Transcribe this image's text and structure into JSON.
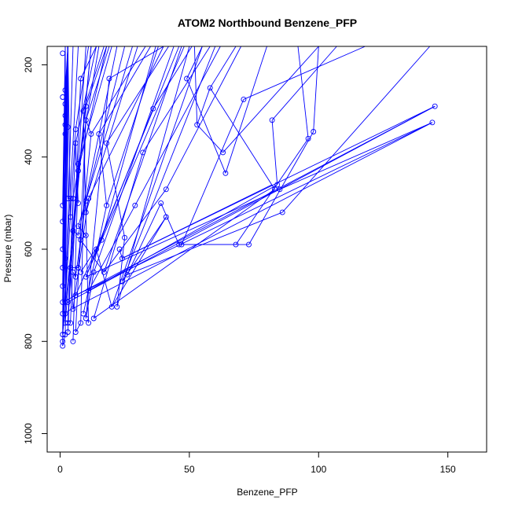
{
  "chart_data": {
    "type": "line",
    "title": "ATOM2 Northbound Benzene_PFP",
    "xlabel": "Benzene_PFP",
    "ylabel": "Pressure (mbar)",
    "xlim": [
      -5,
      165
    ],
    "ylim": [
      1040,
      160
    ],
    "y_reversed": true,
    "xticks": [
      0,
      50,
      100,
      150
    ],
    "yticks": [
      200,
      400,
      600,
      800,
      1000
    ],
    "grid": false,
    "series_color": "#0000ff",
    "points": [
      [
        1,
        810
      ],
      [
        1,
        800
      ],
      [
        1,
        785
      ],
      [
        1,
        740
      ],
      [
        1,
        715
      ],
      [
        1,
        680
      ],
      [
        1,
        640
      ],
      [
        1,
        600
      ],
      [
        1,
        540
      ],
      [
        1,
        505
      ],
      [
        1,
        270
      ],
      [
        1,
        175
      ],
      [
        2,
        785
      ],
      [
        2,
        760
      ],
      [
        2,
        740
      ],
      [
        2,
        715
      ],
      [
        2,
        620
      ],
      [
        2,
        350
      ],
      [
        2,
        330
      ],
      [
        2,
        310
      ],
      [
        2,
        285
      ],
      [
        2,
        255
      ],
      [
        3,
        780
      ],
      [
        3,
        760
      ],
      [
        3,
        715
      ],
      [
        3,
        490
      ],
      [
        3,
        335
      ],
      [
        4,
        760
      ],
      [
        4,
        640
      ],
      [
        4,
        530
      ],
      [
        4,
        490
      ],
      [
        5,
        800
      ],
      [
        5,
        730
      ],
      [
        5,
        650
      ],
      [
        5,
        560
      ],
      [
        5,
        490
      ],
      [
        6,
        780
      ],
      [
        6,
        700
      ],
      [
        6,
        660
      ],
      [
        6,
        370
      ],
      [
        6,
        340
      ],
      [
        7,
        640
      ],
      [
        7,
        570
      ],
      [
        7,
        550
      ],
      [
        7,
        500
      ],
      [
        7,
        430
      ],
      [
        7,
        415
      ],
      [
        8,
        760
      ],
      [
        8,
        650
      ],
      [
        8,
        580
      ],
      [
        8,
        230
      ],
      [
        9,
        740
      ],
      [
        9,
        300
      ],
      [
        10,
        750
      ],
      [
        10,
        660
      ],
      [
        10,
        570
      ],
      [
        10,
        520
      ],
      [
        10,
        495
      ],
      [
        10,
        320
      ],
      [
        10,
        290
      ],
      [
        11,
        760
      ],
      [
        11,
        690
      ],
      [
        11,
        490
      ],
      [
        12,
        350
      ],
      [
        13,
        750
      ],
      [
        13,
        650
      ],
      [
        14,
        600
      ],
      [
        15,
        350
      ],
      [
        16,
        580
      ],
      [
        17,
        650
      ],
      [
        18,
        505
      ],
      [
        18,
        370
      ],
      [
        19,
        230
      ],
      [
        20,
        725
      ],
      [
        22,
        725
      ],
      [
        23,
        600
      ],
      [
        24,
        620
      ],
      [
        24,
        670
      ],
      [
        25,
        575
      ],
      [
        26,
        655
      ],
      [
        29,
        505
      ],
      [
        32,
        390
      ],
      [
        36,
        295
      ],
      [
        39,
        500
      ],
      [
        41,
        530
      ],
      [
        41,
        470
      ],
      [
        46,
        590
      ],
      [
        47,
        590
      ],
      [
        49,
        230
      ],
      [
        53,
        330
      ],
      [
        58,
        250
      ],
      [
        63,
        390
      ],
      [
        64,
        435
      ],
      [
        68,
        590
      ],
      [
        71,
        275
      ],
      [
        73,
        590
      ],
      [
        82,
        320
      ],
      [
        83,
        470
      ],
      [
        84,
        460
      ],
      [
        85,
        470
      ],
      [
        86,
        520
      ],
      [
        96,
        360
      ],
      [
        98,
        345
      ],
      [
        144,
        325
      ],
      [
        145,
        290
      ]
    ],
    "segments": [
      [
        1,
        810,
        3,
        160
      ],
      [
        1,
        785,
        2,
        160
      ],
      [
        1,
        740,
        3,
        160
      ],
      [
        1,
        715,
        2,
        160
      ],
      [
        2,
        785,
        3,
        160
      ],
      [
        2,
        760,
        2,
        160
      ],
      [
        1,
        680,
        2,
        160
      ],
      [
        1,
        640,
        3,
        160
      ],
      [
        2,
        620,
        3,
        160
      ],
      [
        1,
        600,
        2,
        160
      ],
      [
        1,
        540,
        3,
        160
      ],
      [
        1,
        505,
        2,
        160
      ],
      [
        2,
        350,
        3,
        160
      ],
      [
        2,
        330,
        3,
        160
      ],
      [
        2,
        310,
        3,
        160
      ],
      [
        2,
        285,
        3,
        160
      ],
      [
        2,
        255,
        3,
        160
      ],
      [
        3,
        490,
        3,
        160
      ],
      [
        3,
        335,
        3,
        160
      ],
      [
        4,
        530,
        3,
        160
      ],
      [
        1,
        785,
        7,
        160
      ],
      [
        2,
        740,
        5,
        160
      ],
      [
        3,
        760,
        10,
        160
      ],
      [
        4,
        640,
        12,
        160
      ],
      [
        5,
        560,
        12,
        160
      ],
      [
        5,
        490,
        15,
        160
      ],
      [
        6,
        370,
        14,
        160
      ],
      [
        6,
        340,
        11,
        160
      ],
      [
        7,
        430,
        18,
        160
      ],
      [
        7,
        415,
        20,
        160
      ],
      [
        8,
        230,
        14,
        160
      ],
      [
        9,
        300,
        17,
        160
      ],
      [
        10,
        320,
        19,
        160
      ],
      [
        10,
        290,
        18,
        160
      ],
      [
        7,
        570,
        22,
        160
      ],
      [
        10,
        495,
        25,
        160
      ],
      [
        10,
        520,
        30,
        160
      ],
      [
        11,
        490,
        40,
        160
      ],
      [
        12,
        350,
        33,
        160
      ],
      [
        15,
        350,
        35,
        160
      ],
      [
        18,
        370,
        42,
        160
      ],
      [
        16,
        580,
        37,
        160
      ],
      [
        18,
        505,
        38,
        160
      ],
      [
        19,
        230,
        40,
        160
      ],
      [
        7,
        550,
        28,
        160
      ],
      [
        14,
        600,
        46,
        160
      ],
      [
        17,
        650,
        47,
        160
      ],
      [
        13,
        650,
        44,
        160
      ],
      [
        10,
        660,
        48,
        160
      ],
      [
        20,
        725,
        55,
        160
      ],
      [
        22,
        725,
        50,
        160
      ],
      [
        24,
        670,
        60,
        160
      ],
      [
        29,
        505,
        62,
        160
      ],
      [
        32,
        390,
        58,
        160
      ],
      [
        36,
        295,
        51,
        160
      ],
      [
        41,
        470,
        70,
        160
      ],
      [
        49,
        230,
        55,
        160
      ],
      [
        53,
        330,
        52,
        160
      ],
      [
        58,
        250,
        68,
        160
      ],
      [
        64,
        435,
        80,
        160
      ],
      [
        63,
        390,
        100,
        160
      ],
      [
        71,
        275,
        118,
        160
      ],
      [
        96,
        360,
        92,
        160
      ],
      [
        98,
        345,
        100,
        160
      ],
      [
        82,
        320,
        107,
        160
      ],
      [
        86,
        520,
        143,
        160
      ],
      [
        1,
        740,
        144,
        325
      ],
      [
        1,
        715,
        145,
        290
      ],
      [
        3,
        715,
        145,
        290
      ],
      [
        6,
        700,
        144,
        325
      ],
      [
        10,
        660,
        85,
        470
      ],
      [
        11,
        690,
        84,
        460
      ],
      [
        13,
        750,
        83,
        470
      ],
      [
        26,
        655,
        86,
        520
      ],
      [
        24,
        620,
        82,
        460
      ],
      [
        47,
        590,
        68,
        590
      ],
      [
        46,
        590,
        73,
        590
      ],
      [
        73,
        590,
        98,
        345
      ],
      [
        68,
        590,
        96,
        360
      ],
      [
        39,
        500,
        46,
        590
      ],
      [
        41,
        530,
        20,
        725
      ],
      [
        22,
        725,
        25,
        575
      ],
      [
        24,
        620,
        23,
        600
      ],
      [
        20,
        725,
        14,
        600
      ],
      [
        10,
        750,
        19,
        230
      ],
      [
        11,
        760,
        9,
        300
      ],
      [
        8,
        760,
        10,
        290
      ],
      [
        5,
        800,
        7,
        430
      ],
      [
        6,
        780,
        10,
        320
      ],
      [
        4,
        760,
        8,
        230
      ],
      [
        2,
        760,
        7,
        415
      ],
      [
        3,
        780,
        6,
        370
      ],
      [
        2,
        715,
        6,
        340
      ],
      [
        1,
        800,
        3,
        335
      ],
      [
        3,
        760,
        5,
        490
      ],
      [
        4,
        490,
        3,
        490
      ],
      [
        5,
        730,
        11,
        490
      ],
      [
        6,
        660,
        10,
        495
      ],
      [
        7,
        640,
        12,
        350
      ],
      [
        9,
        740,
        18,
        505
      ],
      [
        8,
        650,
        16,
        580
      ],
      [
        10,
        570,
        7,
        550
      ],
      [
        10,
        750,
        13,
        650
      ],
      [
        8,
        580,
        17,
        650
      ],
      [
        6,
        700,
        14,
        600
      ],
      [
        11,
        690,
        29,
        505
      ],
      [
        13,
        750,
        32,
        390
      ],
      [
        10,
        660,
        36,
        295
      ],
      [
        17,
        650,
        41,
        470
      ],
      [
        18,
        505,
        15,
        350
      ],
      [
        24,
        670,
        41,
        530
      ],
      [
        25,
        575,
        18,
        370
      ],
      [
        26,
        655,
        39,
        500
      ],
      [
        58,
        250,
        83,
        470
      ],
      [
        82,
        320,
        84,
        460
      ],
      [
        144,
        325,
        85,
        470
      ],
      [
        145,
        290,
        24,
        620
      ],
      [
        64,
        435,
        49,
        230
      ],
      [
        63,
        390,
        53,
        330
      ],
      [
        71,
        275,
        47,
        590
      ],
      [
        53,
        330,
        58,
        250
      ],
      [
        2,
        620,
        1,
        640
      ],
      [
        1,
        600,
        2,
        620
      ],
      [
        4,
        640,
        7,
        640
      ],
      [
        5,
        650,
        6,
        660
      ],
      [
        1,
        785,
        5,
        560
      ],
      [
        1,
        810,
        2,
        785
      ],
      [
        7,
        570,
        5,
        560
      ],
      [
        7,
        500,
        6,
        370
      ],
      [
        8,
        580,
        10,
        570
      ],
      [
        12,
        350,
        10,
        320
      ],
      [
        10,
        520,
        11,
        490
      ],
      [
        3,
        335,
        2,
        285
      ],
      [
        5,
        730,
        4,
        640
      ],
      [
        6,
        780,
        8,
        760
      ]
    ]
  }
}
